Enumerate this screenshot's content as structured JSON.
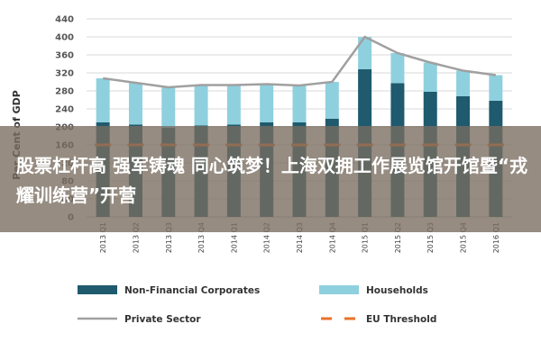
{
  "chart_data": {
    "type": "bar",
    "title": "",
    "xlabel": "",
    "ylabel": "Per Cent of GDP",
    "ylim": [
      0,
      440
    ],
    "yticks": [
      0,
      40,
      80,
      120,
      160,
      200,
      240,
      280,
      320,
      360,
      400,
      440
    ],
    "categories": [
      "2013 Q1",
      "2013 Q2",
      "2013 Q3",
      "2013 Q4",
      "2014 Q1",
      "2014 Q2",
      "2014 Q3",
      "2014 Q4",
      "2015 Q1",
      "2015 Q2",
      "2015 Q3",
      "2015 Q4",
      "2016 Q1"
    ],
    "stacked": true,
    "series": [
      {
        "name": "Non-Financial Corporates",
        "kind": "bar",
        "color": "#1f5a6e",
        "values": [
          210,
          205,
          198,
          203,
          205,
          210,
          210,
          218,
          328,
          297,
          278,
          268,
          258
        ]
      },
      {
        "name": "Households",
        "kind": "bar",
        "color": "#8fd0df",
        "values": [
          98,
          93,
          90,
          90,
          88,
          85,
          82,
          82,
          72,
          67,
          65,
          57,
          57
        ]
      },
      {
        "name": "Private Sector",
        "kind": "line",
        "color": "#a0a0a0",
        "values": [
          308,
          298,
          288,
          293,
          293,
          295,
          292,
          300,
          400,
          364,
          343,
          325,
          315
        ]
      },
      {
        "name": "EU Threshold",
        "kind": "dashed-line",
        "color": "#e8722a",
        "values": [
          160,
          160,
          160,
          160,
          160,
          160,
          160,
          160,
          160,
          160,
          160,
          160,
          160
        ]
      }
    ],
    "grid": true,
    "legend_position": "bottom"
  },
  "overlay": {
    "text": "股票杠杆高 强军铸魂 同心筑梦！上海双拥工作展览馆开馆暨“戎耀训练营”开营"
  }
}
